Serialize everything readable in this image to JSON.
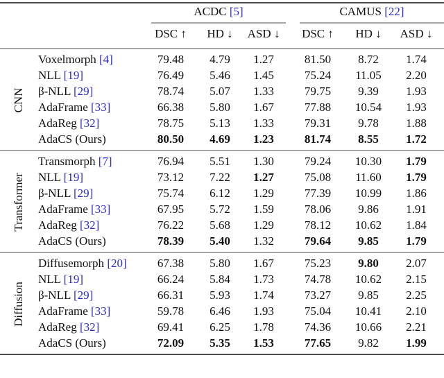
{
  "table": {
    "datasets": [
      {
        "name": "ACDC",
        "ref": "[5]"
      },
      {
        "name": "CAMUS",
        "ref": "[22]"
      }
    ],
    "metrics": [
      "DSC ↑",
      "HD ↓",
      "ASD ↓"
    ],
    "groups": [
      {
        "label": "CNN",
        "rows": [
          {
            "method": "Voxelmorph",
            "ref": "[4]",
            "values": [
              "79.48",
              "4.79",
              "1.27",
              "81.50",
              "8.72",
              "1.74"
            ],
            "bold": []
          },
          {
            "method": "NLL",
            "ref": "[19]",
            "values": [
              "76.49",
              "5.46",
              "1.45",
              "75.24",
              "11.05",
              "2.20"
            ],
            "bold": []
          },
          {
            "method": "β-NLL",
            "ref": "[29]",
            "values": [
              "78.74",
              "5.07",
              "1.33",
              "79.75",
              "9.39",
              "1.93"
            ],
            "bold": []
          },
          {
            "method": "AdaFrame",
            "ref": "[33]",
            "values": [
              "66.38",
              "5.80",
              "1.67",
              "77.88",
              "10.54",
              "1.93"
            ],
            "bold": []
          },
          {
            "method": "AdaReg",
            "ref": "[32]",
            "values": [
              "78.75",
              "5.13",
              "1.33",
              "79.31",
              "9.78",
              "1.88"
            ],
            "bold": []
          },
          {
            "method": "AdaCS (Ours)",
            "values": [
              "80.50",
              "4.69",
              "1.23",
              "81.74",
              "8.55",
              "1.72"
            ],
            "bold": [
              0,
              1,
              2,
              3,
              4,
              5
            ]
          }
        ]
      },
      {
        "label": "Transformer",
        "rows": [
          {
            "method": "Transmorph",
            "ref": "[7]",
            "values": [
              "76.94",
              "5.51",
              "1.30",
              "79.24",
              "10.30",
              "1.79"
            ],
            "bold": [
              5
            ]
          },
          {
            "method": "NLL",
            "ref": "[19]",
            "values": [
              "73.12",
              "7.22",
              "1.27",
              "75.08",
              "11.60",
              "1.79"
            ],
            "bold": [
              2,
              5
            ]
          },
          {
            "method": "β-NLL",
            "ref": "[29]",
            "values": [
              "75.74",
              "6.12",
              "1.29",
              "77.39",
              "10.99",
              "1.86"
            ],
            "bold": []
          },
          {
            "method": "AdaFrame",
            "ref": "[33]",
            "values": [
              "67.95",
              "5.72",
              "1.59",
              "78.06",
              "9.86",
              "1.91"
            ],
            "bold": []
          },
          {
            "method": "AdaReg",
            "ref": "[32]",
            "values": [
              "76.22",
              "5.68",
              "1.29",
              "78.12",
              "10.62",
              "1.84"
            ],
            "bold": []
          },
          {
            "method": "AdaCS (Ours)",
            "values": [
              "78.39",
              "5.40",
              "1.32",
              "79.64",
              "9.85",
              "1.79"
            ],
            "bold": [
              0,
              1,
              3,
              4,
              5
            ]
          }
        ]
      },
      {
        "label": "Diffusion",
        "rows": [
          {
            "method": "Diffusemorph",
            "ref": "[20]",
            "values": [
              "67.38",
              "5.80",
              "1.67",
              "75.23",
              "9.80",
              "2.07"
            ],
            "bold": [
              4
            ]
          },
          {
            "method": "NLL",
            "ref": "[19]",
            "values": [
              "66.24",
              "5.84",
              "1.73",
              "74.78",
              "10.62",
              "2.15"
            ],
            "bold": []
          },
          {
            "method": "β-NLL",
            "ref": "[29]",
            "values": [
              "66.31",
              "5.93",
              "1.74",
              "73.27",
              "9.85",
              "2.25"
            ],
            "bold": []
          },
          {
            "method": "AdaFrame",
            "ref": "[33]",
            "values": [
              "59.78",
              "6.46",
              "1.93",
              "75.04",
              "10.41",
              "2.10"
            ],
            "bold": []
          },
          {
            "method": "AdaReg",
            "ref": "[32]",
            "values": [
              "69.41",
              "6.25",
              "1.78",
              "74.36",
              "10.66",
              "2.21"
            ],
            "bold": []
          },
          {
            "method": "AdaCS (Ours)",
            "values": [
              "72.09",
              "5.35",
              "1.53",
              "77.65",
              "9.82",
              "1.99"
            ],
            "bold": [
              0,
              1,
              2,
              3,
              5
            ]
          }
        ]
      }
    ]
  }
}
